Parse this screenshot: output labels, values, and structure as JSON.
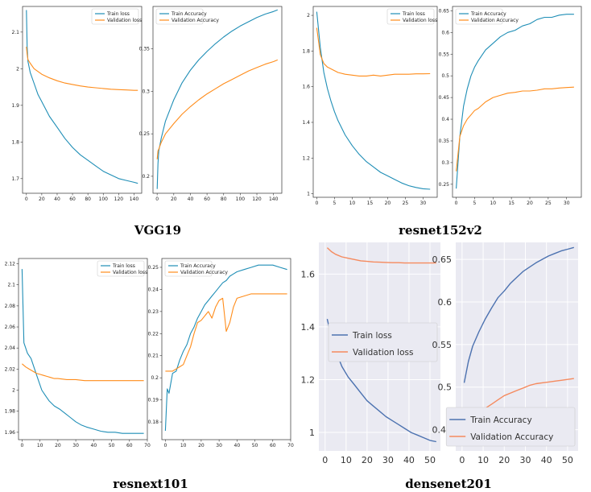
{
  "captions": [
    "VGG19",
    "resnet152v2",
    "resnext101",
    "densenet201"
  ],
  "colors": {
    "train": "#1f8eb6",
    "validation": "#ff8c1a",
    "train_sb": "#4c72b0",
    "validation_sb": "#f58a5e"
  },
  "chart_data": [
    {
      "type": "line",
      "model": "VGG19",
      "xlim": [
        -5,
        150
      ],
      "ylim": [
        1.66,
        2.17
      ],
      "xticks": [
        0,
        20,
        40,
        60,
        80,
        100,
        120,
        140
      ],
      "yticks": [
        1.7,
        1.8,
        1.9,
        2.0,
        2.1
      ],
      "legend_loc": "top-right",
      "series": [
        {
          "name": "Train loss",
          "x": [
            0,
            1,
            2,
            5,
            10,
            15,
            20,
            30,
            40,
            50,
            60,
            70,
            80,
            90,
            100,
            110,
            120,
            130,
            140,
            145
          ],
          "y": [
            2.16,
            2.06,
            2.02,
            1.99,
            1.96,
            1.93,
            1.91,
            1.87,
            1.84,
            1.81,
            1.785,
            1.765,
            1.75,
            1.735,
            1.72,
            1.71,
            1.7,
            1.695,
            1.69,
            1.687
          ]
        },
        {
          "name": "Validation loss",
          "x": [
            0,
            1,
            2,
            5,
            10,
            20,
            30,
            40,
            50,
            60,
            70,
            80,
            90,
            100,
            110,
            120,
            130,
            140,
            145
          ],
          "y": [
            2.06,
            2.04,
            2.025,
            2.015,
            2.0,
            1.985,
            1.975,
            1.967,
            1.961,
            1.957,
            1.953,
            1.95,
            1.948,
            1.946,
            1.944,
            1.943,
            1.942,
            1.941,
            1.941
          ]
        }
      ]
    },
    {
      "type": "line",
      "model": "VGG19",
      "xlim": [
        -5,
        150
      ],
      "ylim": [
        0.18,
        0.4
      ],
      "xticks": [
        0,
        20,
        40,
        60,
        80,
        100,
        120,
        140
      ],
      "yticks": [
        0.2,
        0.25,
        0.3,
        0.35
      ],
      "legend_loc": "top-left",
      "series": [
        {
          "name": "Train Accuracy",
          "x": [
            0,
            1,
            2,
            5,
            10,
            20,
            30,
            40,
            50,
            60,
            70,
            80,
            90,
            100,
            110,
            120,
            130,
            140,
            145
          ],
          "y": [
            0.185,
            0.215,
            0.23,
            0.245,
            0.265,
            0.29,
            0.31,
            0.325,
            0.337,
            0.347,
            0.356,
            0.364,
            0.371,
            0.377,
            0.382,
            0.387,
            0.391,
            0.394,
            0.396
          ]
        },
        {
          "name": "Validation Accuracy",
          "x": [
            0,
            1,
            2,
            5,
            10,
            20,
            30,
            40,
            50,
            60,
            70,
            80,
            90,
            100,
            110,
            120,
            130,
            140,
            145
          ],
          "y": [
            0.22,
            0.23,
            0.232,
            0.24,
            0.25,
            0.262,
            0.273,
            0.282,
            0.29,
            0.297,
            0.303,
            0.309,
            0.314,
            0.319,
            0.324,
            0.328,
            0.332,
            0.335,
            0.337
          ]
        }
      ]
    },
    {
      "type": "line",
      "model": "resnet152v2",
      "xlim": [
        -1,
        34
      ],
      "ylim": [
        0.98,
        2.05
      ],
      "xticks": [
        0,
        5,
        10,
        15,
        20,
        25,
        30
      ],
      "yticks": [
        1.0,
        1.2,
        1.4,
        1.6,
        1.8,
        2.0
      ],
      "legend_loc": "top-right",
      "series": [
        {
          "name": "Train loss",
          "x": [
            0,
            1,
            2,
            3,
            4,
            5,
            6,
            8,
            10,
            12,
            14,
            16,
            18,
            20,
            22,
            24,
            26,
            28,
            30,
            32
          ],
          "y": [
            2.02,
            1.82,
            1.68,
            1.59,
            1.52,
            1.46,
            1.41,
            1.33,
            1.27,
            1.22,
            1.18,
            1.15,
            1.12,
            1.1,
            1.08,
            1.06,
            1.045,
            1.035,
            1.028,
            1.025
          ]
        },
        {
          "name": "Validation loss",
          "x": [
            0,
            1,
            2,
            3,
            4,
            5,
            6,
            8,
            10,
            12,
            14,
            16,
            18,
            20,
            22,
            24,
            26,
            28,
            30,
            32
          ],
          "y": [
            1.93,
            1.78,
            1.73,
            1.71,
            1.7,
            1.69,
            1.68,
            1.67,
            1.665,
            1.66,
            1.66,
            1.665,
            1.66,
            1.665,
            1.67,
            1.67,
            1.67,
            1.672,
            1.672,
            1.673
          ]
        }
      ]
    },
    {
      "type": "line",
      "model": "resnet152v2",
      "xlim": [
        -1,
        34
      ],
      "ylim": [
        0.22,
        0.66
      ],
      "xticks": [
        0,
        5,
        10,
        15,
        20,
        25,
        30
      ],
      "yticks": [
        0.25,
        0.3,
        0.35,
        0.4,
        0.45,
        0.5,
        0.55,
        0.6,
        0.65
      ],
      "legend_loc": "top-left",
      "series": [
        {
          "name": "Train Accuracy",
          "x": [
            0,
            1,
            2,
            3,
            4,
            5,
            6,
            8,
            10,
            12,
            14,
            16,
            18,
            20,
            22,
            24,
            26,
            28,
            30,
            32
          ],
          "y": [
            0.24,
            0.36,
            0.43,
            0.47,
            0.5,
            0.52,
            0.535,
            0.56,
            0.575,
            0.59,
            0.6,
            0.605,
            0.615,
            0.62,
            0.63,
            0.635,
            0.635,
            0.64,
            0.642,
            0.642
          ]
        },
        {
          "name": "Validation Accuracy",
          "x": [
            0,
            1,
            2,
            3,
            4,
            5,
            6,
            8,
            10,
            12,
            14,
            16,
            18,
            20,
            22,
            24,
            26,
            28,
            30,
            32
          ],
          "y": [
            0.28,
            0.36,
            0.385,
            0.4,
            0.41,
            0.42,
            0.425,
            0.44,
            0.45,
            0.455,
            0.46,
            0.462,
            0.465,
            0.465,
            0.467,
            0.47,
            0.47,
            0.472,
            0.473,
            0.474
          ]
        }
      ]
    },
    {
      "type": "line",
      "model": "resnext101",
      "xlim": [
        -2,
        70
      ],
      "ylim": [
        1.953,
        2.125
      ],
      "xticks": [
        0,
        10,
        20,
        30,
        40,
        50,
        60,
        70
      ],
      "yticks": [
        1.96,
        1.98,
        2.0,
        2.02,
        2.04,
        2.06,
        2.08,
        2.1,
        2.12
      ],
      "legend_loc": "top-right",
      "series": [
        {
          "name": "Train loss",
          "x": [
            0,
            1,
            2,
            3,
            5,
            7,
            9,
            11,
            13,
            15,
            18,
            21,
            24,
            27,
            30,
            33,
            36,
            40,
            44,
            48,
            52,
            56,
            60,
            64,
            68
          ],
          "y": [
            2.115,
            2.045,
            2.04,
            2.035,
            2.03,
            2.02,
            2.01,
            2.0,
            1.995,
            1.99,
            1.985,
            1.982,
            1.978,
            1.974,
            1.97,
            1.967,
            1.965,
            1.963,
            1.961,
            1.96,
            1.96,
            1.959,
            1.959,
            1.959,
            1.959
          ]
        },
        {
          "name": "Validation loss",
          "x": [
            0,
            2,
            4,
            6,
            8,
            10,
            12,
            14,
            16,
            18,
            20,
            25,
            30,
            35,
            40,
            45,
            50,
            55,
            60,
            65,
            68
          ],
          "y": [
            2.025,
            2.022,
            2.02,
            2.018,
            2.016,
            2.015,
            2.014,
            2.013,
            2.012,
            2.011,
            2.011,
            2.01,
            2.01,
            2.009,
            2.009,
            2.009,
            2.009,
            2.009,
            2.009,
            2.009,
            2.009
          ]
        }
      ]
    },
    {
      "type": "line",
      "model": "resnext101",
      "xlim": [
        -2,
        70
      ],
      "ylim": [
        0.172,
        0.254
      ],
      "xticks": [
        0,
        10,
        20,
        30,
        40,
        50,
        60,
        70
      ],
      "yticks": [
        0.18,
        0.19,
        0.2,
        0.21,
        0.22,
        0.23,
        0.24,
        0.25
      ],
      "legend_loc": "top-left",
      "series": [
        {
          "name": "Train Accuracy",
          "x": [
            0,
            1,
            2,
            4,
            6,
            8,
            10,
            12,
            14,
            16,
            18,
            20,
            22,
            24,
            26,
            28,
            30,
            32,
            34,
            36,
            38,
            40,
            44,
            48,
            52,
            56,
            60,
            64,
            68
          ],
          "y": [
            0.176,
            0.195,
            0.193,
            0.202,
            0.203,
            0.208,
            0.212,
            0.215,
            0.22,
            0.223,
            0.227,
            0.23,
            0.233,
            0.235,
            0.237,
            0.239,
            0.241,
            0.243,
            0.244,
            0.246,
            0.247,
            0.248,
            0.249,
            0.25,
            0.251,
            0.251,
            0.251,
            0.25,
            0.249
          ]
        },
        {
          "name": "Validation Accuracy",
          "x": [
            0,
            2,
            4,
            6,
            8,
            10,
            12,
            14,
            16,
            18,
            20,
            22,
            24,
            26,
            28,
            30,
            32,
            34,
            36,
            38,
            40,
            44,
            48,
            52,
            56,
            60,
            64,
            68
          ],
          "y": [
            0.203,
            0.203,
            0.203,
            0.204,
            0.205,
            0.206,
            0.21,
            0.214,
            0.22,
            0.225,
            0.226,
            0.228,
            0.23,
            0.227,
            0.232,
            0.235,
            0.236,
            0.221,
            0.225,
            0.232,
            0.236,
            0.237,
            0.238,
            0.238,
            0.238,
            0.238,
            0.238,
            0.238
          ]
        }
      ]
    },
    {
      "type": "line",
      "model": "densenet201",
      "xlim": [
        -3,
        55
      ],
      "ylim": [
        0.93,
        1.72
      ],
      "xticks": [
        0,
        10,
        20,
        30,
        40,
        50
      ],
      "yticks": [
        1.0,
        1.2,
        1.4,
        1.6
      ],
      "legend_loc": "center-right",
      "series": [
        {
          "name": "Train loss",
          "x": [
            1,
            3,
            5,
            8,
            11,
            14,
            17,
            20,
            23,
            26,
            29,
            32,
            35,
            38,
            41,
            44,
            47,
            50,
            53
          ],
          "y": [
            1.43,
            1.36,
            1.31,
            1.25,
            1.21,
            1.18,
            1.15,
            1.12,
            1.1,
            1.08,
            1.06,
            1.045,
            1.03,
            1.015,
            1.0,
            0.99,
            0.98,
            0.97,
            0.965
          ]
        },
        {
          "name": "Validation loss",
          "x": [
            1,
            3,
            5,
            8,
            11,
            14,
            17,
            20,
            23,
            26,
            29,
            32,
            35,
            38,
            41,
            44,
            47,
            50,
            53
          ],
          "y": [
            1.7,
            1.685,
            1.675,
            1.665,
            1.66,
            1.655,
            1.65,
            1.648,
            1.646,
            1.645,
            1.644,
            1.643,
            1.643,
            1.642,
            1.642,
            1.642,
            1.642,
            1.642,
            1.642
          ]
        }
      ]
    },
    {
      "type": "line",
      "model": "densenet201",
      "xlim": [
        -3,
        55
      ],
      "ylim": [
        0.425,
        0.67
      ],
      "xticks": [
        0,
        10,
        20,
        30,
        40,
        50
      ],
      "yticks": [
        0.45,
        0.5,
        0.55,
        0.6,
        0.65
      ],
      "legend_loc": "bottom-right",
      "series": [
        {
          "name": "Train Accuracy",
          "x": [
            1,
            3,
            5,
            8,
            11,
            14,
            17,
            20,
            23,
            26,
            29,
            32,
            35,
            38,
            41,
            44,
            47,
            50,
            53
          ],
          "y": [
            0.505,
            0.53,
            0.548,
            0.565,
            0.58,
            0.593,
            0.605,
            0.613,
            0.622,
            0.629,
            0.636,
            0.641,
            0.646,
            0.65,
            0.654,
            0.657,
            0.66,
            0.662,
            0.664
          ]
        },
        {
          "name": "Validation Accuracy",
          "x": [
            1,
            2,
            4,
            6,
            8,
            11,
            14,
            17,
            20,
            23,
            26,
            29,
            32,
            35,
            38,
            41,
            44,
            47,
            50,
            53
          ],
          "y": [
            0.44,
            0.44,
            0.455,
            0.465,
            0.47,
            0.475,
            0.48,
            0.485,
            0.49,
            0.493,
            0.496,
            0.499,
            0.502,
            0.504,
            0.505,
            0.506,
            0.507,
            0.508,
            0.509,
            0.51
          ]
        }
      ]
    }
  ]
}
